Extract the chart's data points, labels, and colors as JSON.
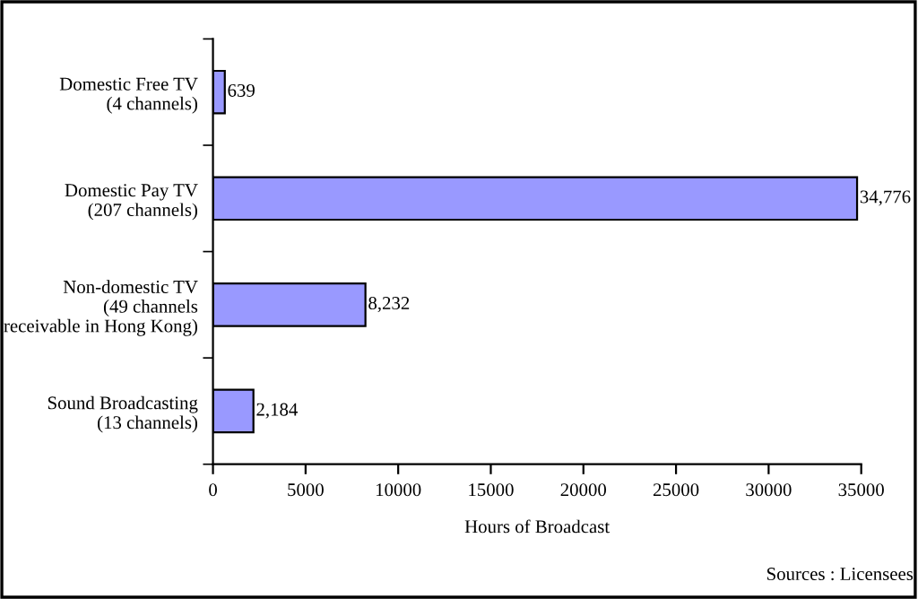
{
  "chart_data": {
    "type": "bar",
    "orientation": "horizontal",
    "categories": [
      "Domestic Free TV\n(4 channels)",
      "Domestic Pay TV\n(207 channels)",
      "Non-domestic TV\n(49 channels\nreceivable in Hong Kong)",
      "Sound Broadcasting\n(13 channels)"
    ],
    "values": [
      639,
      34776,
      8232,
      2184
    ],
    "value_labels": [
      "639",
      "34,776",
      "8,232",
      "2,184"
    ],
    "color": "#9999ff",
    "xlim": [
      0,
      35000
    ],
    "xticks": [
      0,
      5000,
      10000,
      15000,
      20000,
      25000,
      30000,
      35000
    ],
    "xlabel": "Hours of Broadcast",
    "annotations": [
      "Sources : Licensees"
    ],
    "grid": false,
    "legend": false
  }
}
